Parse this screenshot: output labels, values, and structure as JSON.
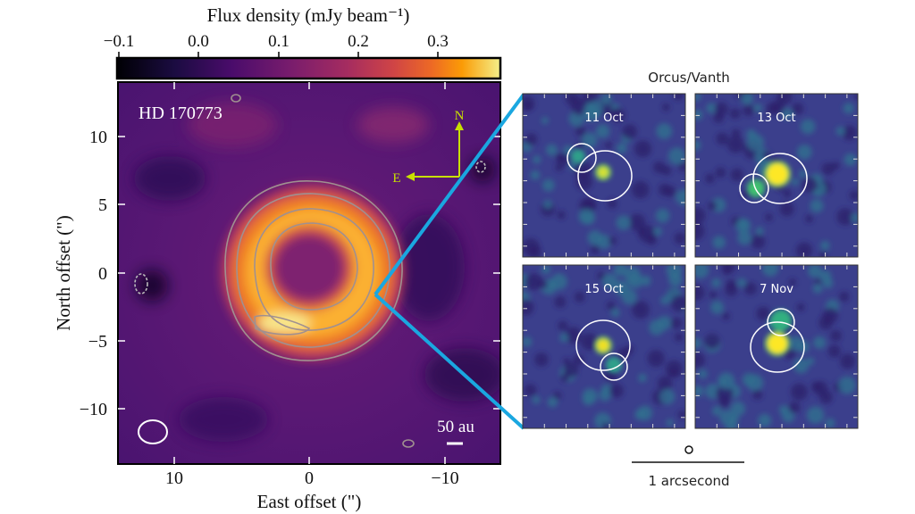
{
  "left_panel": {
    "colorbar": {
      "title": "Flux density (mJy beam⁻¹)",
      "ticks": [
        "−0.1",
        "0.0",
        "0.1",
        "0.2",
        "0.3"
      ],
      "colormap": "inferno",
      "range": [
        -0.1,
        0.35
      ]
    },
    "target_label": "HD 170773",
    "compass": {
      "north": "N",
      "east": "E",
      "color": "#c8e000"
    },
    "scale_bar_label": "50 au",
    "y_axis": {
      "label": "North offset (\")",
      "ticks": [
        "10",
        "5",
        "0",
        "−5",
        "−10"
      ]
    },
    "x_axis": {
      "label": "East offset (\")",
      "ticks": [
        "10",
        "0",
        "−10"
      ]
    }
  },
  "right_panel": {
    "title": "Orcus/Vanth",
    "colormap": "viridis",
    "frames": [
      {
        "date": "11 Oct"
      },
      {
        "date": "13 Oct"
      },
      {
        "date": "15 Oct"
      },
      {
        "date": "7 Nov"
      }
    ],
    "scale_bar_label": "1 arcsecond"
  },
  "connector_color": "#1aa7e0"
}
